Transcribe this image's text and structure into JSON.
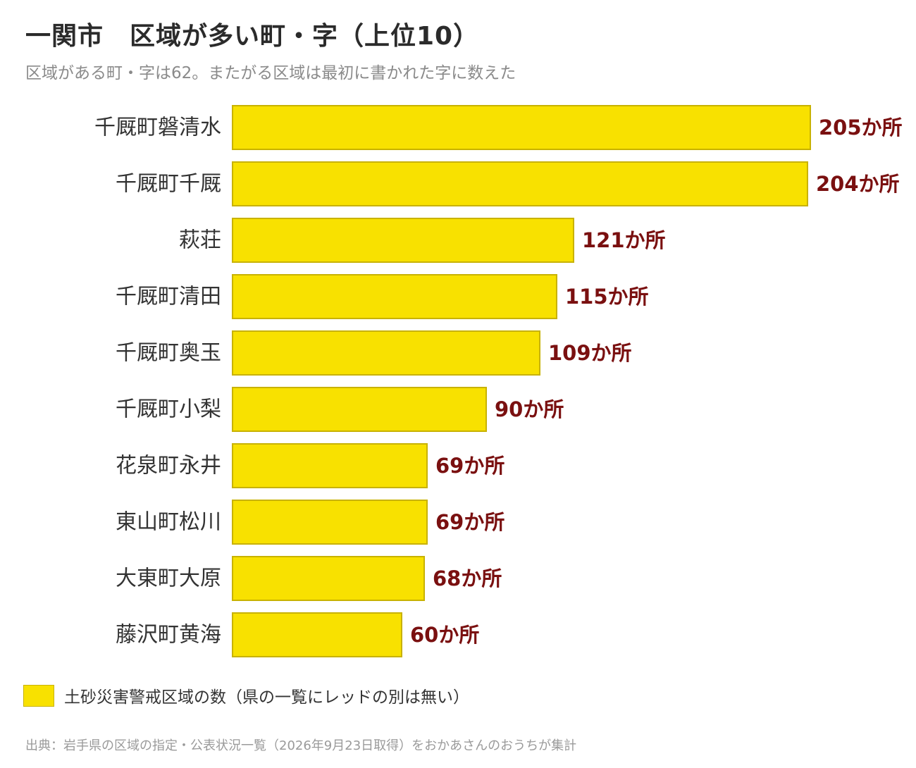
{
  "header": {
    "title": "一関市　区域が多い町・字（上位10）",
    "subtitle": "区域がある町・字は62。またがる区域は最初に書かれた字に数えた"
  },
  "legend": {
    "label": "土砂災害警戒区域の数（県の一覧にレッドの別は無い）",
    "color": "#f8e100"
  },
  "footer": {
    "source": "出典：岩手県の区域の指定・公表状況一覧（2026年9月23日取得）をおかあさんのおうちが集計"
  },
  "colors": {
    "bar_fill": "#f8e100",
    "bar_stroke": "#c8b200",
    "value_label": "#7a1010",
    "category_label": "#333333"
  },
  "chart_data": {
    "type": "bar",
    "orientation": "horizontal",
    "categories": [
      "千厩町磐清水",
      "千厩町千厩",
      "萩荘",
      "千厩町清田",
      "千厩町奥玉",
      "千厩町小梨",
      "花泉町永井",
      "東山町松川",
      "大東町大原",
      "藤沢町黄海"
    ],
    "values": [
      205,
      204,
      121,
      115,
      109,
      90,
      69,
      69,
      68,
      60
    ],
    "value_labels": [
      "205か所",
      "204か所",
      "121か所",
      "115か所",
      "109か所",
      "90か所",
      "69か所",
      "69か所",
      "68か所",
      "60か所"
    ],
    "title": "一関市　区域が多い町・字（上位10）",
    "xlabel": "",
    "ylabel": "",
    "xlim": [
      0,
      205
    ],
    "grid": false,
    "legend_position": "bottom-left"
  }
}
